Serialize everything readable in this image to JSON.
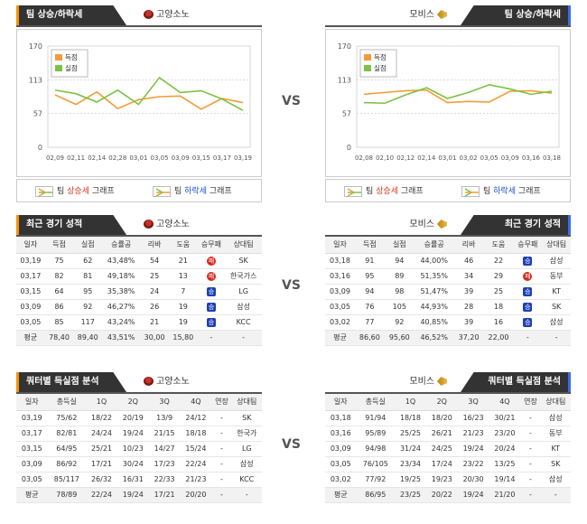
{
  "vs_label": "VS",
  "trend": {
    "left": {
      "title": "팀 상승/하락세",
      "team": "고양소노",
      "y_ticks": [
        "170",
        "113",
        "57",
        "0"
      ],
      "legend_score": "득점",
      "legend_conceded": "실점",
      "footer_up_prefix": "팀 ",
      "footer_up_word": "상승세",
      "footer_up_suffix": " 그래프",
      "footer_down_prefix": "팀 ",
      "footer_down_word": "하락세",
      "footer_down_suffix": " 그래프"
    },
    "right": {
      "title": "팀 상승/하락세",
      "team": "모비스",
      "y_ticks": [
        "170",
        "113",
        "57",
        "0"
      ],
      "legend_score": "득점",
      "legend_conceded": "실점",
      "footer_up_prefix": "팀 ",
      "footer_up_word": "상승세",
      "footer_up_suffix": " 그래프",
      "footer_down_prefix": "팀 ",
      "footer_down_word": "하락세",
      "footer_down_suffix": " 그래프"
    }
  },
  "chart_data": [
    {
      "type": "line",
      "title": "",
      "categories": [
        "02,09",
        "02,11",
        "02,14",
        "02,28",
        "03,01",
        "03,05",
        "03,09",
        "03,15",
        "03,17",
        "03,19"
      ],
      "series": [
        {
          "name": "득점",
          "values": [
            88,
            72,
            93,
            65,
            80,
            85,
            86,
            64,
            82,
            75
          ]
        },
        {
          "name": "실점",
          "values": [
            96,
            90,
            76,
            96,
            72,
            117,
            92,
            95,
            81,
            62
          ]
        }
      ],
      "ylim": [
        0,
        170
      ],
      "colors": [
        "#f49b38",
        "#7cc243"
      ]
    },
    {
      "type": "line",
      "title": "",
      "categories": [
        "02,08",
        "02,10",
        "02,12",
        "02,14",
        "03,01",
        "03,02",
        "03,05",
        "03,09",
        "03,16",
        "03,18"
      ],
      "series": [
        {
          "name": "득점",
          "values": [
            89,
            92,
            95,
            96,
            75,
            77,
            76,
            94,
            95,
            91
          ]
        },
        {
          "name": "실점",
          "values": [
            75,
            74,
            88,
            100,
            82,
            92,
            105,
            98,
            89,
            94
          ]
        }
      ],
      "ylim": [
        0,
        170
      ],
      "colors": [
        "#f49b38",
        "#7cc243"
      ]
    }
  ],
  "recent": {
    "left": {
      "title": "최근 경기 성적",
      "team": "고양소노",
      "headers": [
        "일자",
        "득점",
        "실점",
        "승률공",
        "리바",
        "도움",
        "승무패",
        "상대팀"
      ],
      "rows": [
        [
          "03,19",
          "75",
          "62",
          "43,48%",
          "54",
          "21",
          "패",
          "SK"
        ],
        [
          "03,17",
          "82",
          "81",
          "49,18%",
          "25",
          "13",
          "패",
          "한국가스"
        ],
        [
          "03,15",
          "64",
          "95",
          "35,38%",
          "24",
          "7",
          "승",
          "LG"
        ],
        [
          "03,09",
          "86",
          "92",
          "46,27%",
          "26",
          "19",
          "승",
          "삼성"
        ],
        [
          "03,05",
          "85",
          "117",
          "43,24%",
          "21",
          "19",
          "승",
          "KCC"
        ]
      ],
      "avg": [
        "평균",
        "78,40",
        "89,40",
        "43,51%",
        "30,00",
        "15,80",
        "-",
        "-"
      ]
    },
    "right": {
      "title": "최근 경기 성적",
      "team": "모비스",
      "headers": [
        "일자",
        "득점",
        "실점",
        "승률공",
        "리바",
        "도움",
        "승무패",
        "상대팀"
      ],
      "rows": [
        [
          "03,18",
          "91",
          "94",
          "44,00%",
          "46",
          "22",
          "승",
          "삼성"
        ],
        [
          "03,16",
          "95",
          "89",
          "51,35%",
          "34",
          "29",
          "패",
          "동부"
        ],
        [
          "03,09",
          "94",
          "98",
          "51,47%",
          "39",
          "25",
          "승",
          "KT"
        ],
        [
          "03,05",
          "76",
          "105",
          "44,93%",
          "28",
          "18",
          "승",
          "SK"
        ],
        [
          "03,02",
          "77",
          "92",
          "40,85%",
          "39",
          "16",
          "승",
          "삼성"
        ]
      ],
      "avg": [
        "평균",
        "86,60",
        "95,60",
        "46,52%",
        "37,20",
        "22,00",
        "-",
        "-"
      ]
    }
  },
  "quarter": {
    "left": {
      "title": "쿼터별 득실점 분석",
      "team": "고양소노",
      "headers": [
        "일자",
        "총득실",
        "1Q",
        "2Q",
        "3Q",
        "4Q",
        "연장",
        "상대팀"
      ],
      "rows": [
        [
          "03,19",
          "75/62",
          "18/22",
          "20/19",
          "13/9",
          "24/12",
          "-",
          "SK"
        ],
        [
          "03,17",
          "82/81",
          "24/24",
          "19/24",
          "21/15",
          "18/18",
          "-",
          "한국가"
        ],
        [
          "03,15",
          "64/95",
          "25/21",
          "10/23",
          "14/27",
          "15/24",
          "-",
          "LG"
        ],
        [
          "03,09",
          "86/92",
          "17/21",
          "30/24",
          "17/23",
          "22/24",
          "-",
          "삼성"
        ],
        [
          "03,05",
          "85/117",
          "26/32",
          "16/31",
          "22/33",
          "21/23",
          "-",
          "KCC"
        ]
      ],
      "avg": [
        "평균",
        "78/89",
        "22/24",
        "19/24",
        "17/21",
        "20/20",
        "-",
        "-"
      ]
    },
    "right": {
      "title": "쿼터별 득실점 분석",
      "team": "모비스",
      "headers": [
        "일자",
        "총득실",
        "1Q",
        "2Q",
        "3Q",
        "4Q",
        "연장",
        "상대팀"
      ],
      "rows": [
        [
          "03,18",
          "91/94",
          "18/18",
          "18/20",
          "16/23",
          "30/21",
          "-",
          "삼성"
        ],
        [
          "03,16",
          "95/89",
          "25/25",
          "26/21",
          "21/23",
          "23/20",
          "-",
          "동부"
        ],
        [
          "03,09",
          "94/98",
          "31/24",
          "24/25",
          "19/24",
          "20/24",
          "-",
          "KT"
        ],
        [
          "03,05",
          "76/105",
          "23/34",
          "17/24",
          "23/22",
          "13/25",
          "-",
          "SK"
        ],
        [
          "03,02",
          "77/92",
          "19/25",
          "19/23",
          "20/30",
          "19/14",
          "-",
          "삼성"
        ]
      ],
      "avg": [
        "평균",
        "86/95",
        "23/25",
        "20/22",
        "19/24",
        "21/20",
        "-",
        "-"
      ]
    }
  }
}
